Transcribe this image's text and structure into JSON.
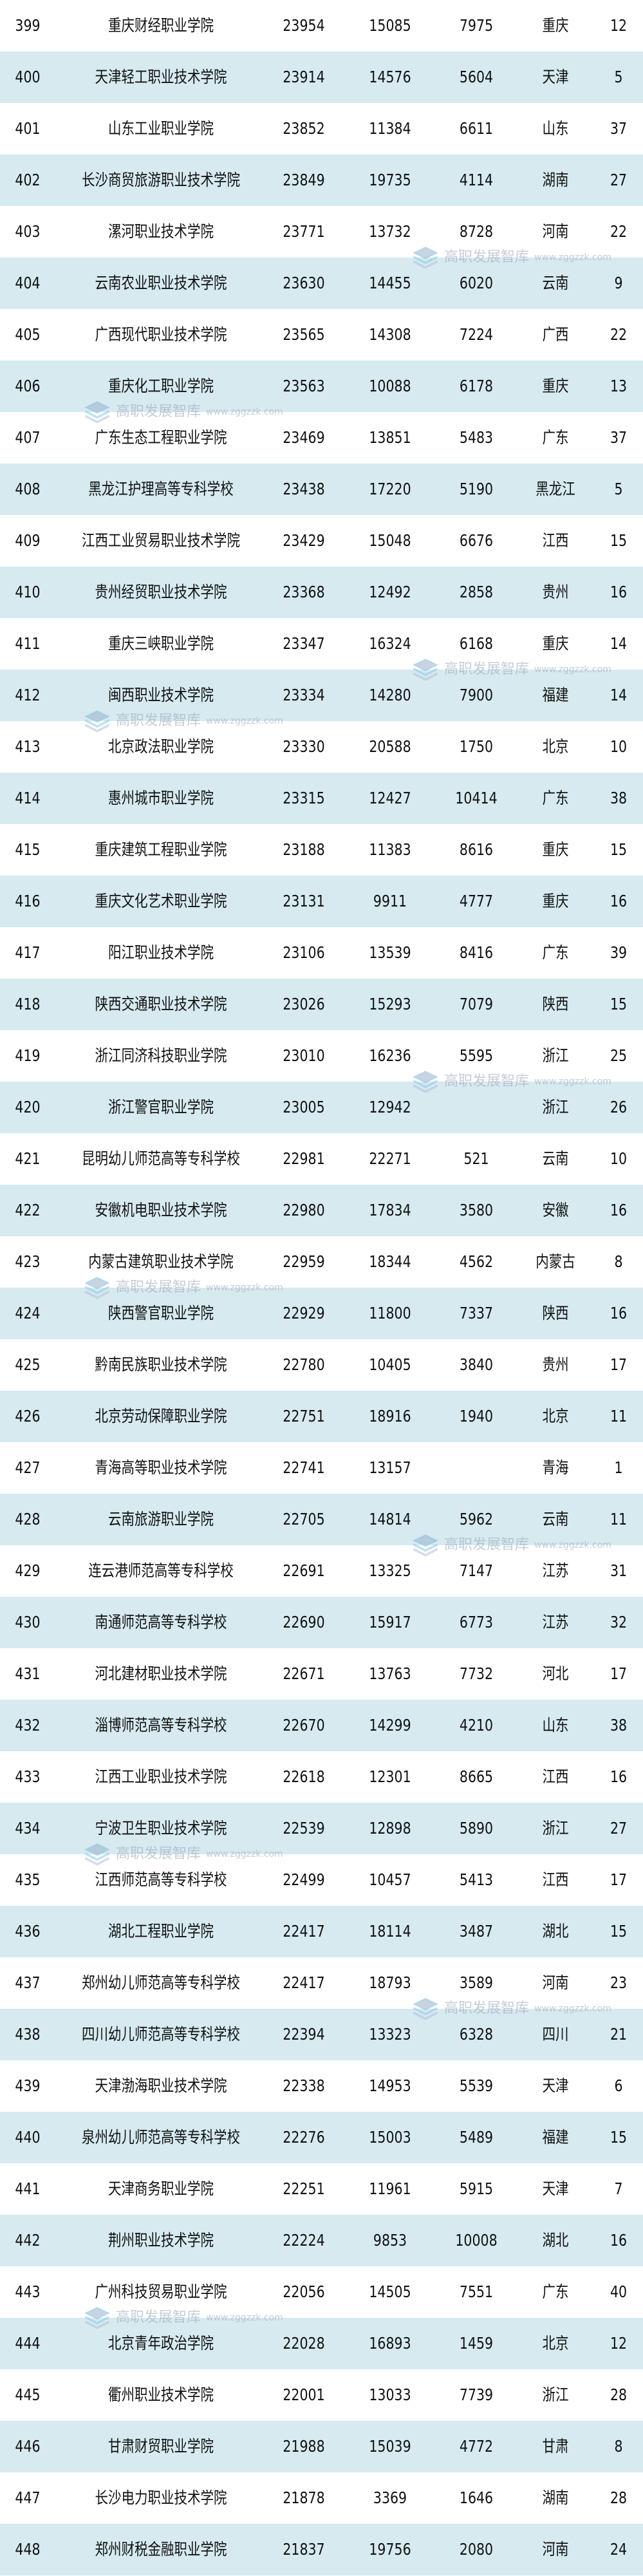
{
  "watermark": {
    "text": "高职发展智库",
    "url": "www.zggzzk.com"
  },
  "colors": {
    "row_alt": "#d6eaf0",
    "row": "#ffffff",
    "text": "#111111"
  },
  "rows": [
    [
      "399",
      "重庆财经职业学院",
      "23954",
      "15085",
      "7975",
      "重庆",
      "12"
    ],
    [
      "400",
      "天津轻工职业技术学院",
      "23914",
      "14576",
      "5604",
      "天津",
      "5"
    ],
    [
      "401",
      "山东工业职业学院",
      "23852",
      "11384",
      "6611",
      "山东",
      "37"
    ],
    [
      "402",
      "长沙商贸旅游职业技术学院",
      "23849",
      "19735",
      "4114",
      "湖南",
      "27"
    ],
    [
      "403",
      "漯河职业技术学院",
      "23771",
      "13732",
      "8728",
      "河南",
      "22"
    ],
    [
      "404",
      "云南农业职业技术学院",
      "23630",
      "14455",
      "6020",
      "云南",
      "9"
    ],
    [
      "405",
      "广西现代职业技术学院",
      "23565",
      "14308",
      "7224",
      "广西",
      "22"
    ],
    [
      "406",
      "重庆化工职业学院",
      "23563",
      "10088",
      "6178",
      "重庆",
      "13"
    ],
    [
      "407",
      "广东生态工程职业学院",
      "23469",
      "13851",
      "5483",
      "广东",
      "37"
    ],
    [
      "408",
      "黑龙江护理高等专科学校",
      "23438",
      "17220",
      "5190",
      "黑龙江",
      "5"
    ],
    [
      "409",
      "江西工业贸易职业技术学院",
      "23429",
      "15048",
      "6676",
      "江西",
      "15"
    ],
    [
      "410",
      "贵州经贸职业技术学院",
      "23368",
      "12492",
      "2858",
      "贵州",
      "16"
    ],
    [
      "411",
      "重庆三峡职业学院",
      "23347",
      "16324",
      "6168",
      "重庆",
      "14"
    ],
    [
      "412",
      "闽西职业技术学院",
      "23334",
      "14280",
      "7900",
      "福建",
      "14"
    ],
    [
      "413",
      "北京政法职业学院",
      "23330",
      "20588",
      "1750",
      "北京",
      "10"
    ],
    [
      "414",
      "惠州城市职业学院",
      "23315",
      "12427",
      "10414",
      "广东",
      "38"
    ],
    [
      "415",
      "重庆建筑工程职业学院",
      "23188",
      "11383",
      "8616",
      "重庆",
      "15"
    ],
    [
      "416",
      "重庆文化艺术职业学院",
      "23131",
      "9911",
      "4777",
      "重庆",
      "16"
    ],
    [
      "417",
      "阳江职业技术学院",
      "23106",
      "13539",
      "8416",
      "广东",
      "39"
    ],
    [
      "418",
      "陕西交通职业技术学院",
      "23026",
      "15293",
      "7079",
      "陕西",
      "15"
    ],
    [
      "419",
      "浙江同济科技职业学院",
      "23010",
      "16236",
      "5595",
      "浙江",
      "25"
    ],
    [
      "420",
      "浙江警官职业学院",
      "23005",
      "12942",
      "",
      "浙江",
      "26"
    ],
    [
      "421",
      "昆明幼儿师范高等专科学校",
      "22981",
      "22271",
      "521",
      "云南",
      "10"
    ],
    [
      "422",
      "安徽机电职业技术学院",
      "22980",
      "17834",
      "3580",
      "安徽",
      "16"
    ],
    [
      "423",
      "内蒙古建筑职业技术学院",
      "22959",
      "18344",
      "4562",
      "内蒙古",
      "8"
    ],
    [
      "424",
      "陕西警官职业学院",
      "22929",
      "11800",
      "7337",
      "陕西",
      "16"
    ],
    [
      "425",
      "黔南民族职业技术学院",
      "22780",
      "10405",
      "3840",
      "贵州",
      "17"
    ],
    [
      "426",
      "北京劳动保障职业学院",
      "22751",
      "18916",
      "1940",
      "北京",
      "11"
    ],
    [
      "427",
      "青海高等职业技术学院",
      "22741",
      "13157",
      "",
      "青海",
      "1"
    ],
    [
      "428",
      "云南旅游职业学院",
      "22705",
      "14814",
      "5962",
      "云南",
      "11"
    ],
    [
      "429",
      "连云港师范高等专科学校",
      "22691",
      "13325",
      "7147",
      "江苏",
      "31"
    ],
    [
      "430",
      "南通师范高等专科学校",
      "22690",
      "15917",
      "6773",
      "江苏",
      "32"
    ],
    [
      "431",
      "河北建材职业技术学院",
      "22671",
      "13763",
      "7732",
      "河北",
      "17"
    ],
    [
      "432",
      "淄博师范高等专科学校",
      "22670",
      "14299",
      "4210",
      "山东",
      "38"
    ],
    [
      "433",
      "江西工业职业技术学院",
      "22618",
      "12301",
      "8665",
      "江西",
      "16"
    ],
    [
      "434",
      "宁波卫生职业技术学院",
      "22539",
      "12898",
      "5890",
      "浙江",
      "27"
    ],
    [
      "435",
      "江西师范高等专科学校",
      "22499",
      "10457",
      "5413",
      "江西",
      "17"
    ],
    [
      "436",
      "湖北工程职业学院",
      "22417",
      "18114",
      "3487",
      "湖北",
      "15"
    ],
    [
      "437",
      "郑州幼儿师范高等专科学校",
      "22417",
      "18793",
      "3589",
      "河南",
      "23"
    ],
    [
      "438",
      "四川幼儿师范高等专科学校",
      "22394",
      "13323",
      "6328",
      "四川",
      "21"
    ],
    [
      "439",
      "天津渤海职业技术学院",
      "22338",
      "14953",
      "5539",
      "天津",
      "6"
    ],
    [
      "440",
      "泉州幼儿师范高等专科学校",
      "22276",
      "15003",
      "5489",
      "福建",
      "15"
    ],
    [
      "441",
      "天津商务职业学院",
      "22251",
      "11961",
      "5915",
      "天津",
      "7"
    ],
    [
      "442",
      "荆州职业技术学院",
      "22224",
      "9853",
      "10008",
      "湖北",
      "16"
    ],
    [
      "443",
      "广州科技贸易职业学院",
      "22056",
      "14505",
      "7551",
      "广东",
      "40"
    ],
    [
      "444",
      "北京青年政治学院",
      "22028",
      "16893",
      "1459",
      "北京",
      "12"
    ],
    [
      "445",
      "衢州职业技术学院",
      "22001",
      "13033",
      "7739",
      "浙江",
      "28"
    ],
    [
      "446",
      "甘肃财贸职业学院",
      "21988",
      "15039",
      "4772",
      "甘肃",
      "8"
    ],
    [
      "447",
      "长沙电力职业技术学院",
      "21878",
      "3369",
      "1646",
      "湖南",
      "28"
    ],
    [
      "448",
      "郑州财税金融职业学院",
      "21837",
      "19756",
      "2080",
      "河南",
      "24"
    ]
  ]
}
